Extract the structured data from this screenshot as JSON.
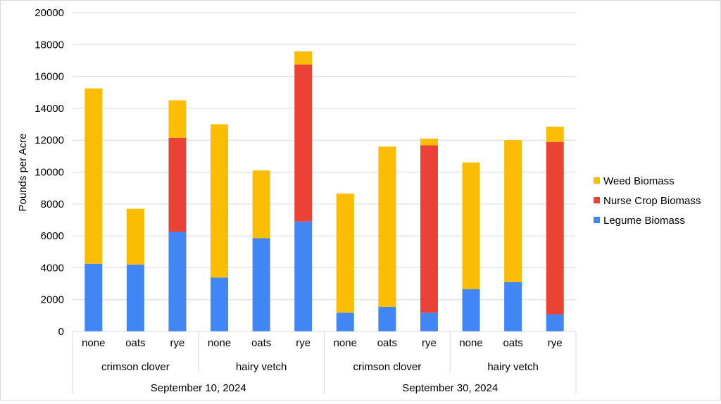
{
  "chart_data": {
    "type": "bar",
    "stacked": true,
    "ylabel": "Pounds per Acre",
    "ylim": [
      0,
      20000
    ],
    "yticks": [
      0,
      2000,
      4000,
      6000,
      8000,
      10000,
      12000,
      14000,
      16000,
      18000,
      20000
    ],
    "grid": true,
    "legend_position": "right",
    "categories": [
      "none",
      "oats",
      "rye",
      "none",
      "oats",
      "rye",
      "none",
      "oats",
      "rye",
      "none",
      "oats",
      "rye"
    ],
    "group_labels": [
      {
        "label": "crimson clover",
        "start": 0,
        "end": 2
      },
      {
        "label": "hairy vetch",
        "start": 3,
        "end": 5
      },
      {
        "label": "crimson clover",
        "start": 6,
        "end": 8
      },
      {
        "label": "hairy vetch",
        "start": 9,
        "end": 11
      }
    ],
    "outer_group_labels": [
      {
        "label": "September 10, 2024",
        "start": 0,
        "end": 5
      },
      {
        "label": "September 30, 2024",
        "start": 6,
        "end": 11
      }
    ],
    "series": [
      {
        "name": "Legume Biomass",
        "color": "#4285F4",
        "values": [
          4250,
          4200,
          6250,
          3380,
          5850,
          6900,
          1180,
          1550,
          1180,
          2650,
          3100,
          1080
        ]
      },
      {
        "name": "Nurse Crop Biomass",
        "color": "#EA4335",
        "values": [
          0,
          0,
          5900,
          0,
          0,
          9850,
          0,
          0,
          10500,
          0,
          0,
          10800
        ]
      },
      {
        "name": "Weed Biomass",
        "color": "#FBBC04",
        "values": [
          11000,
          3500,
          2350,
          9620,
          4250,
          820,
          7470,
          10050,
          420,
          7950,
          8900,
          970
        ]
      }
    ],
    "legend_order": [
      "Weed Biomass",
      "Nurse Crop Biomass",
      "Legume Biomass"
    ]
  }
}
